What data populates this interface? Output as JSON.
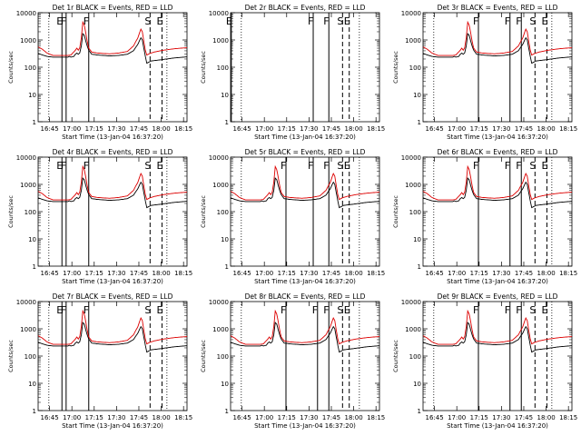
{
  "figure": {
    "ylabel": "Counts/sec",
    "xlabel": "Start Time (13-Jan-04 16:37:20)",
    "title_suffix": "BLACK = Events, RED = LLD",
    "series_names": [
      "Events",
      "LLD"
    ],
    "series_colors": [
      "#000000",
      "#dd0000"
    ],
    "x_ticks": [
      "16:45",
      "17:00",
      "17:15",
      "17:30",
      "17:45",
      "18:00",
      "18:15"
    ],
    "y_ticks": [
      "1",
      "10",
      "100",
      "1000",
      "10000"
    ]
  },
  "chart_data": [
    {
      "type": "line",
      "title": "Det 1r",
      "has_data": true,
      "ylim": [
        1,
        10000
      ],
      "yscale": "log",
      "flags": [
        {
          "label": "E",
          "t": 16.0
        },
        {
          "label": "F",
          "t": 18.8
        },
        {
          "label": "F",
          "t": 34.0
        },
        {
          "label": "S",
          "t": 75.2
        },
        {
          "label": "E",
          "t": 83.2
        }
      ],
      "events_scale": 1.0,
      "lld_scale": 1.0
    },
    {
      "type": "line",
      "title": "Det 2r",
      "has_data": false,
      "ylim": [
        1,
        10000
      ],
      "yscale": "log",
      "flags": [
        {
          "label": "E",
          "t": 0.5
        },
        {
          "label": "F",
          "t": 55.5
        },
        {
          "label": "F",
          "t": 66.0
        },
        {
          "label": "S",
          "t": 75.2
        },
        {
          "label": "E",
          "t": 79.7
        }
      ],
      "events_scale": 1.0,
      "lld_scale": 1.0
    },
    {
      "type": "line",
      "title": "Det 3r",
      "has_data": true,
      "ylim": [
        1,
        10000
      ],
      "yscale": "log",
      "flags": [
        {
          "label": "F",
          "t": 37.2
        },
        {
          "label": "F",
          "t": 58.4
        },
        {
          "label": "F",
          "t": 66.0
        },
        {
          "label": "S",
          "t": 75.2
        },
        {
          "label": "E",
          "t": 83.2
        }
      ],
      "events_scale": 1.0,
      "lld_scale": 1.0
    },
    {
      "type": "line",
      "title": "Det 4r",
      "has_data": true,
      "ylim": [
        1,
        10000
      ],
      "yscale": "log",
      "flags": [
        {
          "label": "E",
          "t": 16.0
        },
        {
          "label": "F",
          "t": 18.8
        },
        {
          "label": "F",
          "t": 34.0
        },
        {
          "label": "S",
          "t": 75.2
        },
        {
          "label": "E",
          "t": 83.2
        }
      ],
      "events_scale": 1.0,
      "lld_scale": 1.0
    },
    {
      "type": "line",
      "title": "Det 5r",
      "has_data": true,
      "ylim": [
        1,
        10000
      ],
      "yscale": "log",
      "flags": [
        {
          "label": "F",
          "t": 37.2
        },
        {
          "label": "F",
          "t": 55.5
        },
        {
          "label": "F",
          "t": 66.0
        },
        {
          "label": "S",
          "t": 75.2
        },
        {
          "label": "E",
          "t": 79.7
        }
      ],
      "events_scale": 1.0,
      "lld_scale": 1.0
    },
    {
      "type": "line",
      "title": "Det 6r",
      "has_data": true,
      "ylim": [
        1,
        10000
      ],
      "yscale": "log",
      "flags": [
        {
          "label": "F",
          "t": 37.2
        },
        {
          "label": "F",
          "t": 58.4
        },
        {
          "label": "F",
          "t": 66.0
        },
        {
          "label": "S",
          "t": 75.2
        },
        {
          "label": "E",
          "t": 83.2
        }
      ],
      "events_scale": 1.0,
      "lld_scale": 1.0
    },
    {
      "type": "line",
      "title": "Det 7r",
      "has_data": true,
      "ylim": [
        1,
        10000
      ],
      "yscale": "log",
      "flags": [
        {
          "label": "E",
          "t": 16.0
        },
        {
          "label": "F",
          "t": 18.8
        },
        {
          "label": "F",
          "t": 34.0
        },
        {
          "label": "S",
          "t": 75.2
        },
        {
          "label": "E",
          "t": 83.2
        }
      ],
      "events_scale": 1.0,
      "lld_scale": 1.0
    },
    {
      "type": "line",
      "title": "Det 8r",
      "has_data": true,
      "ylim": [
        1,
        10000
      ],
      "yscale": "log",
      "flags": [
        {
          "label": "F",
          "t": 37.2
        },
        {
          "label": "F",
          "t": 58.4
        },
        {
          "label": "F",
          "t": 66.0
        },
        {
          "label": "S",
          "t": 75.2
        },
        {
          "label": "E",
          "t": 79.7
        }
      ],
      "events_scale": 1.0,
      "lld_scale": 1.0
    },
    {
      "type": "line",
      "title": "Det 9r",
      "has_data": true,
      "ylim": [
        1,
        10000
      ],
      "yscale": "log",
      "flags": [
        {
          "label": "F",
          "t": 37.2
        },
        {
          "label": "F",
          "t": 58.4
        },
        {
          "label": "F",
          "t": 66.0
        },
        {
          "label": "S",
          "t": 75.2
        },
        {
          "label": "E",
          "t": 83.2
        }
      ],
      "events_scale": 1.0,
      "lld_scale": 1.0
    }
  ]
}
